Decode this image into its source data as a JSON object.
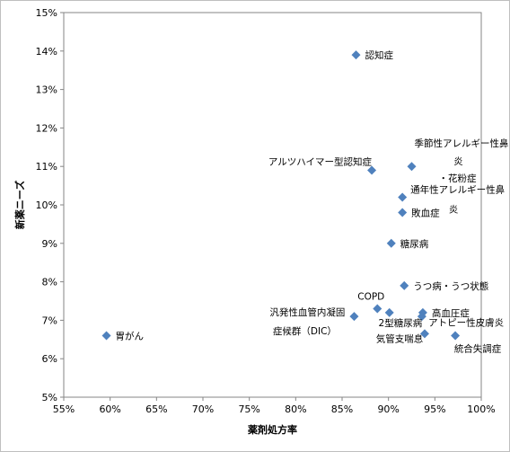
{
  "chart_data": {
    "type": "scatter",
    "xlabel": "薬剤処方率",
    "ylabel": "新薬ニーズ",
    "xlim": [
      55,
      100
    ],
    "ylim": [
      5,
      15
    ],
    "x_ticks": [
      "55%",
      "60%",
      "65%",
      "70%",
      "75%",
      "80%",
      "85%",
      "90%",
      "95%",
      "100%"
    ],
    "y_ticks": [
      "5%",
      "6%",
      "7%",
      "8%",
      "9%",
      "10%",
      "11%",
      "12%",
      "13%",
      "14%",
      "15%"
    ],
    "marker_color": "#4f81bd",
    "points": [
      {
        "x": 86.5,
        "y": 13.9,
        "label": [
          "認知症"
        ],
        "anchor": "right"
      },
      {
        "x": 92.5,
        "y": 11.0,
        "label": [
          "季節性アレルギー性鼻",
          "炎",
          "・花粉症"
        ],
        "anchor": "right"
      },
      {
        "x": 88.2,
        "y": 10.9,
        "label": [
          "アルツハイマー型認知症"
        ],
        "anchor": "left"
      },
      {
        "x": 91.5,
        "y": 10.2,
        "label": [
          "通年性アレルギー性鼻",
          "炎"
        ],
        "anchor": "right"
      },
      {
        "x": 91.5,
        "y": 9.8,
        "label": [
          "敗血症"
        ],
        "anchor": "right"
      },
      {
        "x": 90.3,
        "y": 9.0,
        "label": [
          "糖尿病"
        ],
        "anchor": "right"
      },
      {
        "x": 91.7,
        "y": 7.9,
        "label": [
          "うつ病・うつ状態"
        ],
        "anchor": "right"
      },
      {
        "x": 88.8,
        "y": 7.3,
        "label": [
          "COPD"
        ],
        "anchor": "above"
      },
      {
        "x": 90.1,
        "y": 7.2,
        "label": [],
        "anchor": "none"
      },
      {
        "x": 93.7,
        "y": 7.2,
        "label": [
          "高血圧症"
        ],
        "anchor": "right"
      },
      {
        "x": 93.6,
        "y": 7.1,
        "label": [
          "2型糖尿病"
        ],
        "anchor": "leftbelow"
      },
      {
        "x": 86.3,
        "y": 7.1,
        "label": [
          "汎発性血管内凝固",
          "症候群（DIC）"
        ],
        "anchor": "left"
      },
      {
        "x": 93.9,
        "y": 6.65,
        "label": [
          "気管支喘息"
        ],
        "anchor": "leftbelow2"
      },
      {
        "x": 97.2,
        "y": 6.6,
        "label": [
          "統合失調症"
        ],
        "anchor": "below"
      },
      {
        "x": 59.6,
        "y": 6.6,
        "label": [
          "胃がん"
        ],
        "anchor": "right"
      }
    ],
    "extra_labels": [
      {
        "text": "アトピー性皮膚炎",
        "near": [
          94.5,
          6.95
        ]
      }
    ]
  }
}
